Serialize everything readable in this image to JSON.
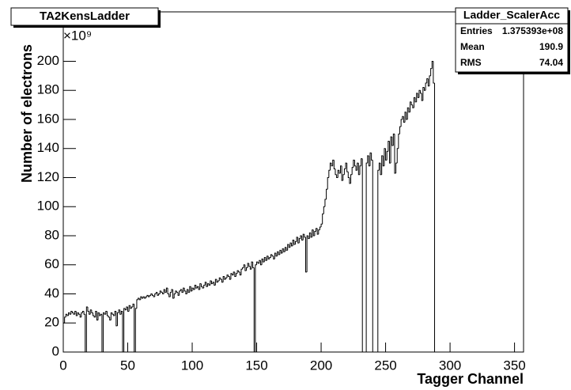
{
  "chart_data": {
    "type": "histogram",
    "title": "TA2KensLadder",
    "x_label": "Tagger Channel",
    "y_label": "Number of electrons",
    "y_scale_label": "×10⁹",
    "color": "#000000",
    "xlim": [
      0,
      357
    ],
    "ylim": [
      0,
      234
    ],
    "xticks": [
      0,
      50,
      100,
      150,
      200,
      250,
      300,
      350
    ],
    "yticks": [
      0,
      20,
      40,
      60,
      80,
      100,
      120,
      140,
      160,
      180,
      200
    ],
    "stats": {
      "title": "Ladder_ScalerAcc",
      "rows": [
        {
          "name": "Entries",
          "value": 137539300,
          "label": "1.375393e+08"
        },
        {
          "name": "Mean",
          "value": 190.9
        },
        {
          "name": "RMS",
          "value": 74.04
        }
      ]
    },
    "bins": [
      0,
      1,
      2,
      3,
      4,
      5,
      6,
      7,
      8,
      9,
      10,
      11,
      12,
      13,
      14,
      15,
      16,
      17,
      18,
      19,
      20,
      21,
      22,
      23,
      24,
      25,
      26,
      27,
      28,
      29,
      30,
      31,
      32,
      33,
      34,
      35,
      36,
      37,
      38,
      39,
      40,
      41,
      42,
      43,
      44,
      45,
      46,
      47,
      48,
      49,
      50,
      51,
      52,
      53,
      54,
      55,
      56,
      57,
      58,
      59,
      60,
      61,
      62,
      63,
      64,
      65,
      66,
      67,
      68,
      69,
      70,
      71,
      72,
      73,
      74,
      75,
      76,
      77,
      78,
      79,
      80,
      81,
      82,
      83,
      84,
      85,
      86,
      87,
      88,
      89,
      90,
      91,
      92,
      93,
      94,
      95,
      96,
      97,
      98,
      99,
      100,
      101,
      102,
      103,
      104,
      105,
      106,
      107,
      108,
      109,
      110,
      111,
      112,
      113,
      114,
      115,
      116,
      117,
      118,
      119,
      120,
      121,
      122,
      123,
      124,
      125,
      126,
      127,
      128,
      129,
      130,
      131,
      132,
      133,
      134,
      135,
      136,
      137,
      138,
      139,
      140,
      141,
      142,
      143,
      144,
      145,
      146,
      147,
      148,
      149,
      150,
      151,
      152,
      153,
      154,
      155,
      156,
      157,
      158,
      159,
      160,
      161,
      162,
      163,
      164,
      165,
      166,
      167,
      168,
      169,
      170,
      171,
      172,
      173,
      174,
      175,
      176,
      177,
      178,
      179,
      180,
      181,
      182,
      183,
      184,
      185,
      186,
      187,
      188,
      189,
      190,
      191,
      192,
      193,
      194,
      195,
      196,
      197,
      198,
      199,
      200,
      201,
      202,
      203,
      204,
      205,
      206,
      207,
      208,
      209,
      210,
      211,
      212,
      213,
      214,
      215,
      216,
      217,
      218,
      219,
      220,
      221,
      222,
      223,
      224,
      225,
      226,
      227,
      228,
      229,
      230,
      231,
      232,
      233,
      234,
      235,
      236,
      237,
      238,
      239,
      240,
      241,
      242,
      243,
      244,
      245,
      246,
      247,
      248,
      249,
      250,
      251,
      252,
      253,
      254,
      255,
      256,
      257,
      258,
      259,
      260,
      261,
      262,
      263,
      264,
      265,
      266,
      267,
      268,
      269,
      270,
      271,
      272,
      273,
      274,
      275,
      276,
      277,
      278,
      279,
      280,
      281,
      282,
      283,
      284,
      285,
      286,
      287,
      288
    ],
    "values": [
      20,
      24,
      26,
      25,
      27,
      26,
      28,
      27,
      26,
      28,
      25,
      27,
      26,
      24,
      27,
      28,
      26,
      0,
      31,
      28,
      26,
      29,
      27,
      25,
      24,
      28,
      22,
      27,
      25,
      26,
      0,
      27,
      26,
      28,
      25,
      24,
      22,
      27,
      26,
      25,
      28,
      18,
      27,
      29,
      26,
      28,
      0,
      30,
      29,
      31,
      28,
      32,
      30,
      31,
      33,
      0,
      30,
      36,
      37,
      36,
      38,
      37,
      38,
      37,
      38,
      39,
      38,
      39,
      40,
      39,
      38,
      40,
      41,
      39,
      40,
      42,
      41,
      40,
      43,
      41,
      44,
      40,
      38,
      41,
      43,
      37,
      40,
      42,
      41,
      39,
      42,
      43,
      41,
      44,
      42,
      40,
      43,
      41,
      45,
      42,
      44,
      43,
      46,
      44,
      45,
      43,
      47,
      45,
      44,
      46,
      48,
      45,
      47,
      46,
      49,
      47,
      48,
      46,
      50,
      48,
      49,
      51,
      50,
      48,
      52,
      50,
      51,
      53,
      52,
      50,
      54,
      53,
      55,
      52,
      54,
      56,
      55,
      53,
      57,
      58,
      60,
      56,
      58,
      61,
      59,
      57,
      62,
      58,
      0,
      60,
      62,
      61,
      63,
      60,
      64,
      62,
      65,
      63,
      66,
      64,
      65,
      67,
      66,
      64,
      68,
      66,
      69,
      67,
      70,
      68,
      71,
      69,
      72,
      70,
      74,
      72,
      75,
      73,
      77,
      74,
      76,
      79,
      75,
      78,
      80,
      77,
      81,
      79,
      55,
      80,
      78,
      82,
      79,
      84,
      80,
      83,
      85,
      81,
      84,
      86,
      88,
      95,
      100,
      105,
      112,
      120,
      125,
      130,
      128,
      132,
      126,
      122,
      120,
      125,
      123,
      128,
      118,
      122,
      126,
      130,
      124,
      120,
      116,
      122,
      127,
      132,
      128,
      125,
      130,
      122,
      128,
      133,
      0,
      0,
      0,
      130,
      135,
      128,
      137,
      132,
      0,
      0,
      0,
      0,
      125,
      130,
      122,
      135,
      128,
      140,
      132,
      138,
      145,
      130,
      148,
      142,
      150,
      123,
      130,
      140,
      150,
      155,
      160,
      162,
      158,
      165,
      160,
      168,
      165,
      172,
      170,
      168,
      175,
      172,
      178,
      175,
      180,
      178,
      173,
      182,
      180,
      185,
      188,
      183,
      190,
      195,
      200,
      185
    ]
  }
}
